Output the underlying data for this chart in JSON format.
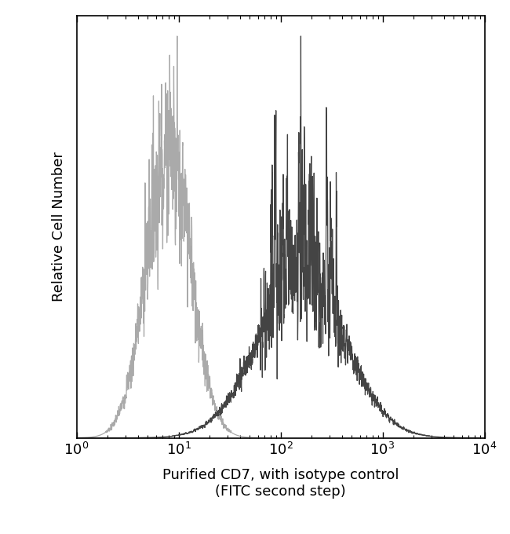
{
  "title": "",
  "xlabel": "Purified CD7, with isotype control\n(FITC second step)",
  "ylabel": "Relative Cell Number",
  "xlim_log": [
    1,
    10000
  ],
  "ylim": [
    0,
    1.05
  ],
  "background_color": "#ffffff",
  "isotype_color": "#aaaaaa",
  "cd7_color": "#444444",
  "figsize": [
    6.5,
    6.8
  ],
  "dpi": 100,
  "iso_peak_log10": 0.9,
  "iso_std_log10": 0.22,
  "cd7_peak_log10": 2.2,
  "cd7_std_log10": 0.42
}
